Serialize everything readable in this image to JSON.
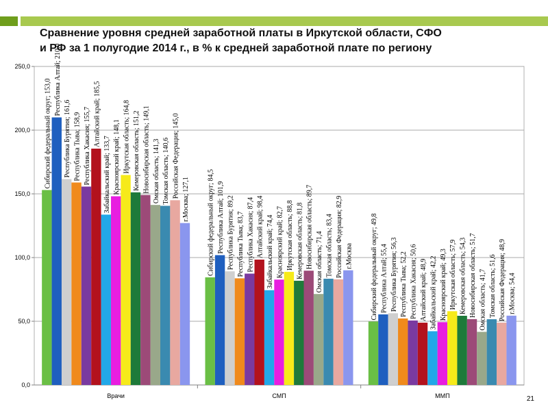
{
  "slide": {
    "title_line1": "Сравнение уровня средней заработной платы в Иркутской области, СФО",
    "title_line2": "и РФ за 1 полугодие 2014 г., в % к средней заработной плате по региону",
    "page_number": "21"
  },
  "chart_data": {
    "type": "bar",
    "ylim": [
      0,
      250
    ],
    "yticks": [
      "0,0",
      "50,0",
      "100,0",
      "150,0",
      "200,0",
      "250,0"
    ],
    "grid": true,
    "legend": "none",
    "groups": [
      {
        "name": "Врачи",
        "bars": [
          {
            "label": "Сибирский федеральный округ; 153,0",
            "value": 153.0,
            "color": "#6abf45"
          },
          {
            "label": "Республика Алтай; 210,0",
            "value": 210.0,
            "color": "#1f5fbf"
          },
          {
            "label": "Республика Бурятия; 161,6",
            "value": 161.6,
            "color": "#cfcfcf"
          },
          {
            "label": "Республика Тыва; 158,9",
            "value": 158.9,
            "color": "#f08a1c"
          },
          {
            "label": "Республика Хакасия; 155,7",
            "value": 155.7,
            "color": "#7a3aa0"
          },
          {
            "label": "Алтайский край; 185,5",
            "value": 185.5,
            "color": "#b3121d"
          },
          {
            "label": "Забайкальский край; 133,7",
            "value": 133.7,
            "color": "#22a8e8"
          },
          {
            "label": "Красноярский край; 148,1",
            "value": 148.1,
            "color": "#e81ee0"
          },
          {
            "label": "Иркутская область; 164,8",
            "value": 164.8,
            "color": "#f6ea1a"
          },
          {
            "label": "Кемеровская область; 151,2",
            "value": 151.2,
            "color": "#1e7a3a"
          },
          {
            "label": "Новосибирская область; 149,1",
            "value": 149.1,
            "color": "#9c4a78"
          },
          {
            "label": "Омская область; 141,3",
            "value": 141.3,
            "color": "#99a88a"
          },
          {
            "label": "Томская область; 140,6",
            "value": 140.6,
            "color": "#3a8ab0"
          },
          {
            "label": "Российская Федерация; 145,0",
            "value": 145.0,
            "color": "#e8a8a0"
          },
          {
            "label": "г.Москва; 127,1",
            "value": 127.1,
            "color": "#8a96ee"
          }
        ]
      },
      {
        "name": "СМП",
        "bars": [
          {
            "label": "Сибирский федеральный округ; 84,5",
            "value": 84.5,
            "color": "#6abf45"
          },
          {
            "label": "Республика Алтай; 101,9",
            "value": 101.9,
            "color": "#1f5fbf"
          },
          {
            "label": "Республика Бурятия; 89,2",
            "value": 89.2,
            "color": "#cfcfcf"
          },
          {
            "label": "Республика Тыва; 83,7",
            "value": 83.7,
            "color": "#f08a1c"
          },
          {
            "label": "Республика Хакасия; 87,4",
            "value": 87.4,
            "color": "#7a3aa0"
          },
          {
            "label": "Алтайский край; 98,4",
            "value": 98.4,
            "color": "#b3121d"
          },
          {
            "label": "Забайкальский край; 74,4",
            "value": 74.4,
            "color": "#22a8e8"
          },
          {
            "label": "Красноярский край; 82,7",
            "value": 82.7,
            "color": "#e81ee0"
          },
          {
            "label": "Иркутская область; 88,8",
            "value": 88.8,
            "color": "#f6ea1a"
          },
          {
            "label": "Кемеровская область; 81,8",
            "value": 81.8,
            "color": "#1e7a3a"
          },
          {
            "label": "Новосибирская область; 89,7",
            "value": 89.7,
            "color": "#9c4a78"
          },
          {
            "label": "Омская область; 71,4",
            "value": 71.4,
            "color": "#99a88a"
          },
          {
            "label": "Томская область; 83,4",
            "value": 83.4,
            "color": "#3a8ab0"
          },
          {
            "label": "Российская Федерация; 82,9",
            "value": 82.9,
            "color": "#e8a8a0"
          },
          {
            "label": "г.Москва",
            "value": 90.0,
            "color": "#8a96ee"
          }
        ]
      },
      {
        "name": "ММП",
        "bars": [
          {
            "label": "Сибирский федеральный округ; 49,8",
            "value": 49.8,
            "color": "#6abf45"
          },
          {
            "label": "Республика Алтай; 55,4",
            "value": 55.4,
            "color": "#1f5fbf"
          },
          {
            "label": "Республика Бурятия; 56,3",
            "value": 56.3,
            "color": "#cfcfcf"
          },
          {
            "label": "Республика Тыва; 52,2",
            "value": 52.2,
            "color": "#f08a1c"
          },
          {
            "label": "Республика Хакасия; 50,6",
            "value": 50.6,
            "color": "#7a3aa0"
          },
          {
            "label": "Алтайский край; 48,9",
            "value": 48.9,
            "color": "#b3121d"
          },
          {
            "label": "Забайкальский край; 42,2",
            "value": 42.2,
            "color": "#22a8e8"
          },
          {
            "label": "Красноярский край; 49,3",
            "value": 49.3,
            "color": "#e81ee0"
          },
          {
            "label": "Иркутская область; 57,9",
            "value": 57.9,
            "color": "#f6ea1a"
          },
          {
            "label": "Кемеровская область; 54,3",
            "value": 54.3,
            "color": "#1e7a3a"
          },
          {
            "label": "Новосибирская область; 51,7",
            "value": 51.7,
            "color": "#9c4a78"
          },
          {
            "label": "Омская область; 41,7",
            "value": 41.7,
            "color": "#99a88a"
          },
          {
            "label": "Томская область; 51,6",
            "value": 51.6,
            "color": "#3a8ab0"
          },
          {
            "label": "Российская Федерация; 48,9",
            "value": 48.9,
            "color": "#e8a8a0"
          },
          {
            "label": "г.Москва; 54,4",
            "value": 54.4,
            "color": "#8a96ee"
          }
        ]
      }
    ]
  }
}
